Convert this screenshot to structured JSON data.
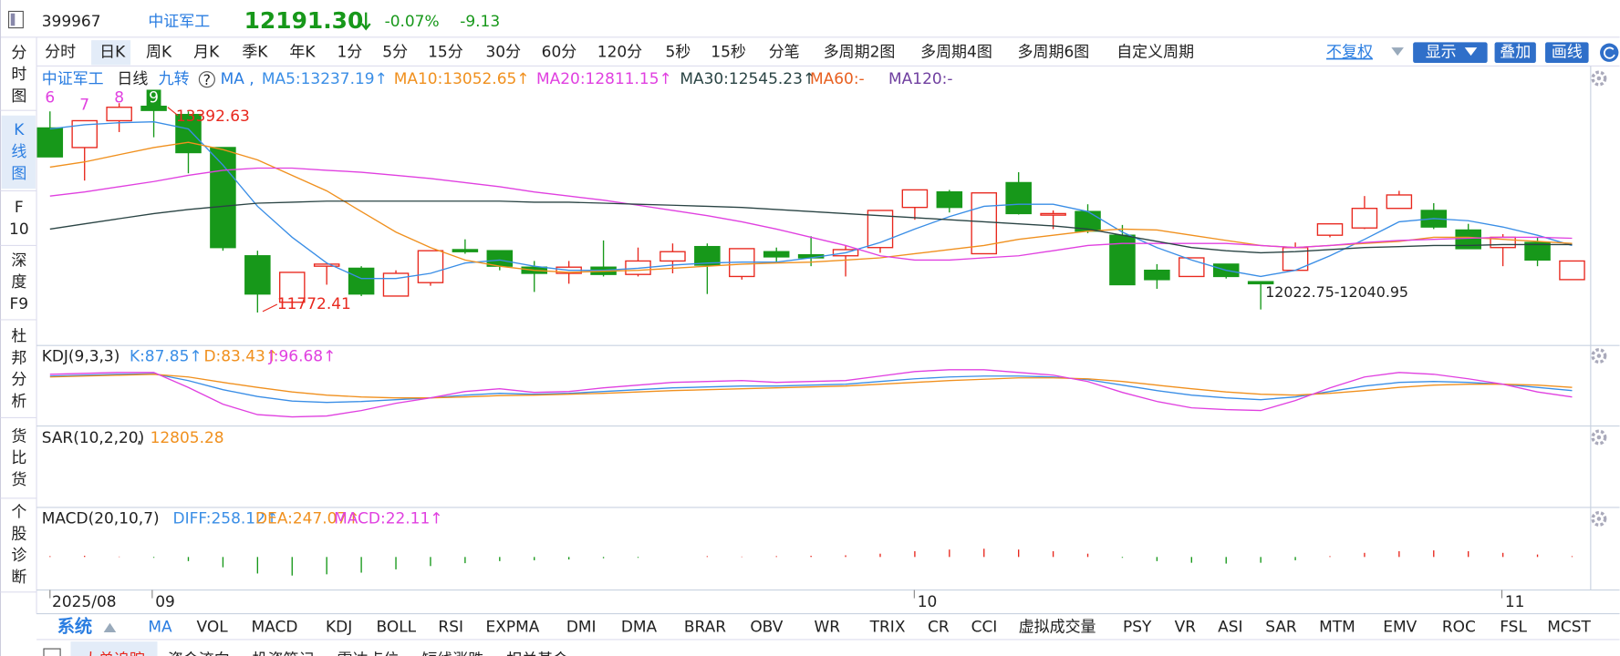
{
  "header": {
    "code": "399967",
    "name": "中证军工",
    "price": "12191.30",
    "change_pct": "-0.07%",
    "change": "-9.13"
  },
  "period_tabs": [
    "分时",
    "日K",
    "周K",
    "月K",
    "季K",
    "年K",
    "1分",
    "5分",
    "15分",
    "30分",
    "60分",
    "120分",
    "5秒",
    "15秒",
    "分笔",
    "多周期2图",
    "多周期4图",
    "多周期6图",
    "自定义周期"
  ],
  "right_controls": [
    "不复权",
    "显示",
    "叠加",
    "画线"
  ],
  "side_tabs": [
    [
      "分",
      "时",
      "图"
    ],
    [
      "K",
      "线",
      "图"
    ],
    [
      "F",
      "10"
    ],
    [
      "深",
      "度",
      "F9"
    ],
    [
      "杜",
      "邦",
      "分",
      "析"
    ],
    [
      "货",
      "比",
      "货"
    ],
    [
      "个",
      "股",
      "诊",
      "断"
    ]
  ],
  "legend": {
    "name": "中证军工",
    "period": "日线",
    "nine": "九转",
    "ma": "MA ,",
    "extra": [
      "MA60:-",
      "MA120:-"
    ]
  },
  "nine_turn": [
    "6",
    "7",
    "8",
    "9"
  ],
  "annotations": {
    "high": "13392.63",
    "low": "11772.41",
    "range": "12022.75-12040.95"
  },
  "kline": {
    "price_lim": [
      11516,
      13776
    ],
    "ohlc": [
      [
        13298,
        13435,
        13059,
        13059
      ],
      [
        13136,
        13358,
        12863,
        13358
      ],
      [
        13358,
        13503,
        13264,
        13469
      ],
      [
        13477,
        13588,
        13221,
        13443
      ],
      [
        13409,
        13435,
        12923,
        13094
      ],
      [
        13136,
        13136,
        12283,
        12309
      ],
      [
        12241,
        12283,
        11772,
        11925
      ],
      [
        11857,
        12104,
        11831,
        12104
      ],
      [
        12155,
        12172,
        12002,
        12172
      ],
      [
        12138,
        12155,
        11908,
        11925
      ],
      [
        11908,
        12121,
        11908,
        12096
      ],
      [
        12019,
        12283,
        11993,
        12283
      ],
      [
        12292,
        12377,
        12258,
        12275
      ],
      [
        12283,
        12283,
        12121,
        12155
      ],
      [
        12147,
        12198,
        11942,
        12096
      ],
      [
        12096,
        12198,
        12010,
        12147
      ],
      [
        12147,
        12368,
        12070,
        12087
      ],
      [
        12087,
        12309,
        12070,
        12198
      ],
      [
        12198,
        12343,
        12096,
        12275
      ],
      [
        12317,
        12343,
        11925,
        12164
      ],
      [
        12070,
        12300,
        12044,
        12300
      ],
      [
        12275,
        12309,
        12181,
        12232
      ],
      [
        12249,
        12403,
        12155,
        12224
      ],
      [
        12241,
        12326,
        12070,
        12292
      ],
      [
        12309,
        12616,
        12266,
        12616
      ],
      [
        12641,
        12786,
        12539,
        12786
      ],
      [
        12769,
        12786,
        12599,
        12641
      ],
      [
        12258,
        12761,
        12258,
        12761
      ],
      [
        12846,
        12932,
        12582,
        12590
      ],
      [
        12582,
        12616,
        12462,
        12590
      ],
      [
        12607,
        12667,
        12428,
        12445
      ],
      [
        12411,
        12496,
        12002,
        12002
      ],
      [
        12121,
        12172,
        11968,
        12044
      ],
      [
        12070,
        12224,
        12070,
        12224
      ],
      [
        12172,
        12172,
        12053,
        12070
      ],
      [
        12027,
        12027,
        11797,
        12010
      ],
      [
        12121,
        12351,
        12121,
        12309
      ],
      [
        12411,
        12505,
        12394,
        12505
      ],
      [
        12471,
        12735,
        12462,
        12633
      ],
      [
        12633,
        12778,
        12633,
        12744
      ],
      [
        12616,
        12676,
        12462,
        12479
      ],
      [
        12454,
        12505,
        12300,
        12300
      ],
      [
        12309,
        12420,
        12155,
        12394
      ],
      [
        12351,
        12394,
        12155,
        12206
      ],
      [
        12044,
        12198,
        12044,
        12198
      ]
    ],
    "up_color": "#e8281e",
    "down_color": "#17981a",
    "ma": [
      {
        "label": "MA5:13237.19↑",
        "color": "#3a8ee6",
        "values": [
          13290,
          13324,
          13341,
          13349,
          13290,
          12991,
          12650,
          12394,
          12181,
          12053,
          12053,
          12096,
          12181,
          12206,
          12155,
          12121,
          12121,
          12138,
          12164,
          12181,
          12189,
          12189,
          12224,
          12266,
          12351,
          12462,
          12565,
          12650,
          12667,
          12667,
          12607,
          12437,
          12309,
          12206,
          12121,
          12070,
          12121,
          12241,
          12377,
          12522,
          12548,
          12531,
          12479,
          12411,
          12326
        ]
      },
      {
        "label": "MA10:13052.65↑",
        "color": "#f0901e",
        "values": [
          12974,
          13017,
          13077,
          13136,
          13179,
          13119,
          13034,
          12906,
          12778,
          12607,
          12437,
          12309,
          12206,
          12155,
          12121,
          12104,
          12113,
          12121,
          12138,
          12155,
          12172,
          12181,
          12189,
          12206,
          12224,
          12258,
          12292,
          12326,
          12377,
          12411,
          12445,
          12462,
          12454,
          12411,
          12368,
          12326,
          12309,
          12326,
          12343,
          12360,
          12394,
          12394,
          12377,
          12360,
          12343
        ]
      },
      {
        "label": "MA20:12811.15↑",
        "color": "#e040e0",
        "values": [
          12735,
          12769,
          12812,
          12855,
          12906,
          12948,
          12966,
          12966,
          12948,
          12932,
          12906,
          12880,
          12846,
          12812,
          12769,
          12735,
          12701,
          12659,
          12616,
          12573,
          12522,
          12462,
          12394,
          12326,
          12241,
          12206,
          12206,
          12224,
          12241,
          12283,
          12326,
          12343,
          12343,
          12343,
          12343,
          12326,
          12309,
          12326,
          12351,
          12368,
          12377,
          12386,
          12394,
          12394,
          12386
        ]
      },
      {
        "label": "MA30:12545.23↑",
        "color": "#2a4444",
        "values": [
          12462,
          12505,
          12548,
          12590,
          12624,
          12650,
          12676,
          12684,
          12693,
          12693,
          12693,
          12693,
          12693,
          12693,
          12684,
          12684,
          12676,
          12667,
          12659,
          12650,
          12641,
          12624,
          12607,
          12590,
          12573,
          12556,
          12539,
          12522,
          12505,
          12488,
          12462,
          12411,
          12360,
          12309,
          12283,
          12266,
          12275,
          12292,
          12309,
          12317,
          12326,
          12326,
          12334,
          12334,
          12334
        ]
      }
    ]
  },
  "kdj": {
    "label": "KDJ(9,3,3)",
    "lim": [
      -30,
      145
    ],
    "series": [
      {
        "label": "K:87.85↑",
        "color": "#3a8ee6",
        "values": [
          80,
          82,
          84,
          85,
          70,
          50,
          35,
          25,
          22,
          24,
          28,
          32,
          38,
          42,
          40,
          42,
          46,
          50,
          54,
          56,
          58,
          58,
          60,
          62,
          68,
          74,
          78,
          80,
          80,
          78,
          72,
          60,
          48,
          38,
          32,
          28,
          34,
          46,
          58,
          66,
          68,
          66,
          62,
          55,
          48
        ]
      },
      {
        "label": "D:83.43↑",
        "color": "#f0901e",
        "values": [
          78,
          80,
          82,
          84,
          78,
          66,
          55,
          45,
          38,
          34,
          32,
          32,
          34,
          37,
          38,
          40,
          42,
          45,
          48,
          50,
          52,
          54,
          56,
          58,
          62,
          66,
          70,
          73,
          76,
          76,
          74,
          68,
          60,
          52,
          45,
          40,
          38,
          42,
          48,
          55,
          60,
          62,
          62,
          60,
          55
        ]
      },
      {
        "label": "J:96.68↑",
        "color": "#e040e0",
        "values": [
          84,
          86,
          88,
          88,
          55,
          18,
          -5,
          -10,
          -8,
          4,
          20,
          32,
          46,
          52,
          44,
          46,
          54,
          60,
          66,
          68,
          70,
          66,
          68,
          70,
          80,
          90,
          94,
          94,
          88,
          82,
          68,
          44,
          24,
          10,
          6,
          4,
          26,
          54,
          78,
          88,
          84,
          74,
          62,
          45,
          34
        ]
      }
    ]
  },
  "sar": {
    "label": "SAR(10,2,20)",
    "value": "12805.28"
  },
  "macd": {
    "label": "MACD(20,10,7)",
    "items": [
      "DIFF:258.12↑",
      "DEA:247.07↑",
      "MACD:22.11↑"
    ],
    "lim": [
      -80,
      120
    ],
    "values": [
      2,
      3,
      1,
      -2,
      -10,
      -25,
      -40,
      -45,
      -42,
      -38,
      -30,
      -22,
      -15,
      -10,
      -8,
      -6,
      -3,
      -2,
      0,
      2,
      1,
      2,
      3,
      4,
      8,
      14,
      18,
      20,
      18,
      14,
      8,
      -2,
      -10,
      -14,
      -16,
      -14,
      -8,
      2,
      10,
      14,
      16,
      14,
      10,
      6,
      2
    ]
  },
  "dates": [
    "2025/08",
    "09",
    "10",
    "11"
  ],
  "indicator_tabs": {
    "system": "系统",
    "items": [
      "MA",
      "VOL",
      "MACD",
      "KDJ",
      "BOLL",
      "RSI",
      "EXPMA",
      "DMI",
      "DMA",
      "BRAR",
      "OBV",
      "WR",
      "TRIX",
      "CR",
      "CCI",
      "虚拟成交量",
      "PSY",
      "VR",
      "ASI",
      "SAR",
      "MTM",
      "EMV",
      "ROC",
      "FSL",
      "MCST"
    ]
  },
  "bottom_tabs": [
    "大单追踪",
    "资金流向",
    "投资笔记",
    "雷达点位",
    "短线涨跌",
    "相关基金"
  ]
}
